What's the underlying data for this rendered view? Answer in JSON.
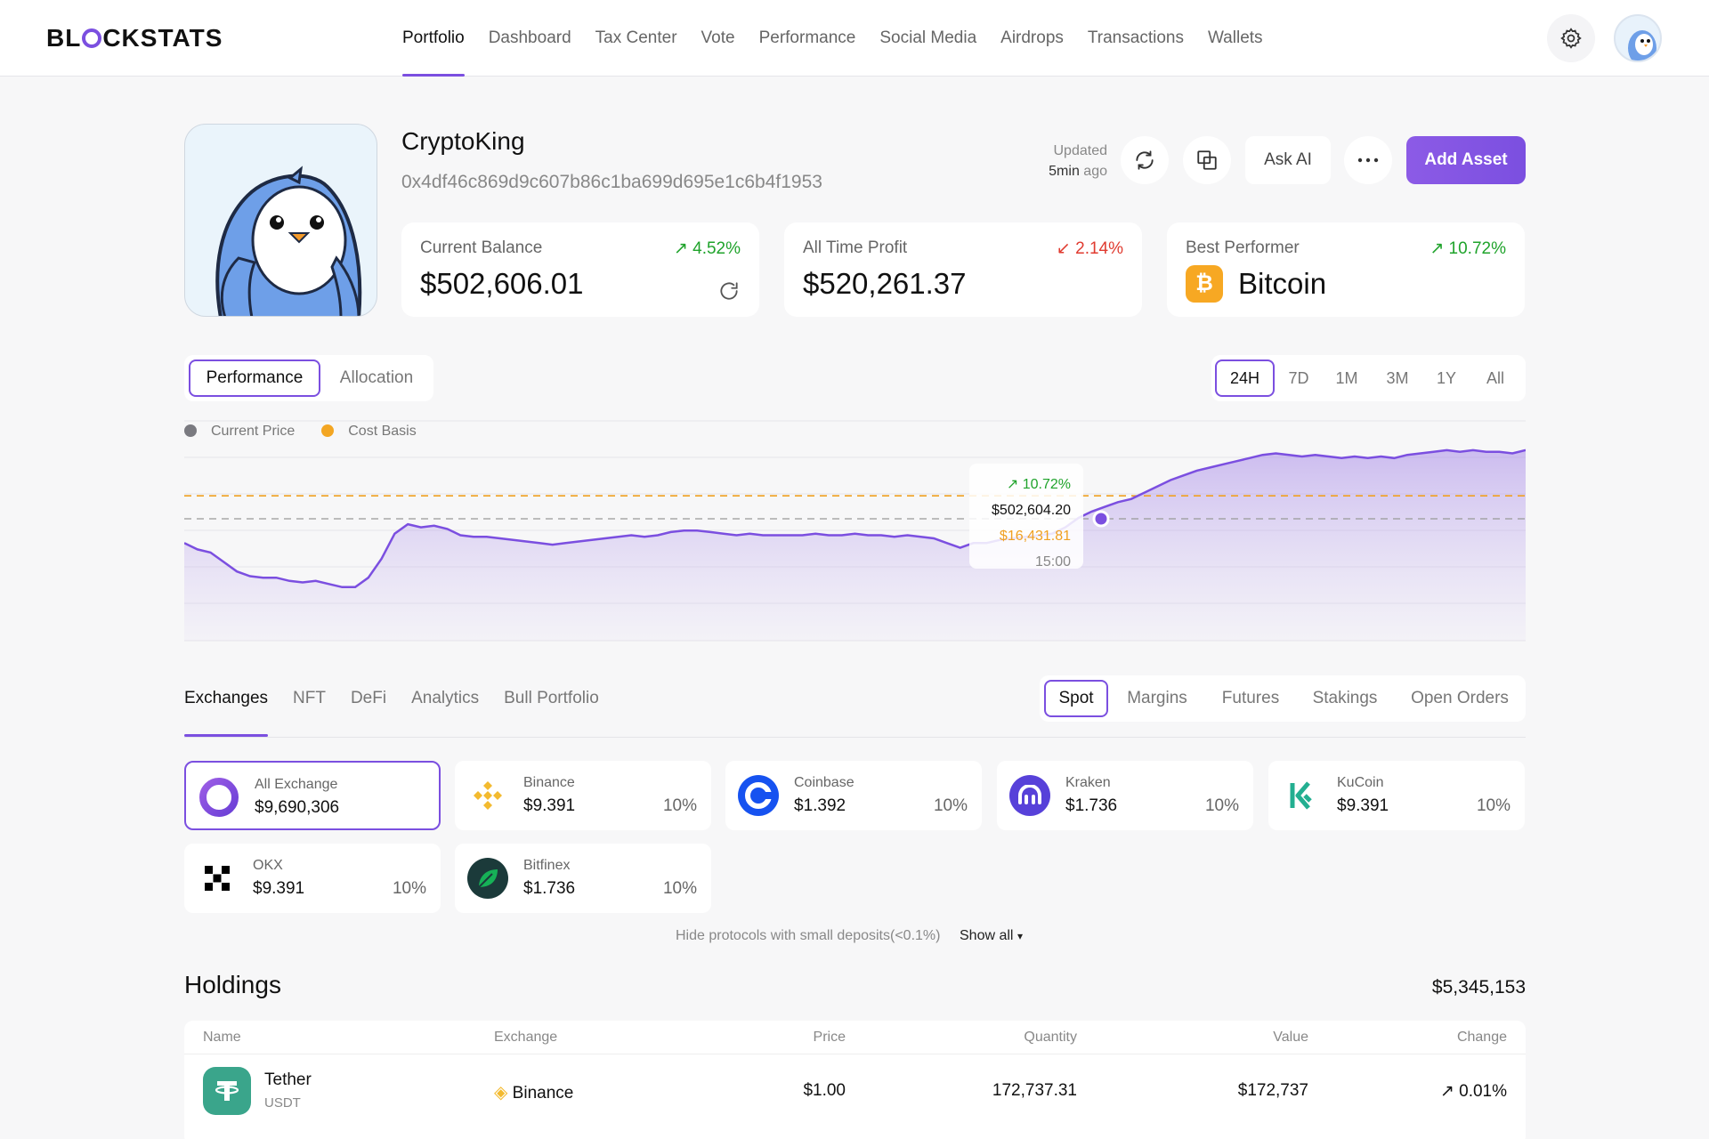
{
  "app": {
    "logo_before": "BL",
    "logo_after": "CKSTATS"
  },
  "nav": [
    {
      "label": "Portfolio",
      "active": true
    },
    {
      "label": "Dashboard"
    },
    {
      "label": "Tax Center"
    },
    {
      "label": "Vote"
    },
    {
      "label": "Performance"
    },
    {
      "label": "Social Media"
    },
    {
      "label": "Airdrops"
    },
    {
      "label": "Transactions"
    },
    {
      "label": "Wallets"
    }
  ],
  "profile": {
    "name": "CryptoKing",
    "address": "0x4df46c869d9c607b86c1ba699d695e1c6b4f1953",
    "updated_label": "Updated",
    "updated_value": "5min",
    "updated_suffix": "ago"
  },
  "actions": {
    "ask_ai": "Ask AI",
    "add_asset": "Add Asset"
  },
  "stats": [
    {
      "label": "Current Balance",
      "change": "4.52%",
      "direction": "up",
      "value": "$502,606.01"
    },
    {
      "label": "All Time Profit",
      "change": "2.14%",
      "direction": "down",
      "value": "$520,261.37"
    },
    {
      "label": "Best Performer",
      "change": "10.72%",
      "direction": "up",
      "value": "Bitcoin"
    }
  ],
  "chart_tabs": [
    {
      "label": "Performance",
      "active": true
    },
    {
      "label": "Allocation"
    }
  ],
  "range_tabs": [
    {
      "label": "24H",
      "active": true
    },
    {
      "label": "7D"
    },
    {
      "label": "1M"
    },
    {
      "label": "3M"
    },
    {
      "label": "1Y"
    },
    {
      "label": "All"
    }
  ],
  "legend": [
    {
      "label": "Current Price",
      "color": "#7a7a80"
    },
    {
      "label": "Cost Basis",
      "color": "#f3a623"
    }
  ],
  "tooltip": {
    "change": "10.72%",
    "price": "$502,604.20",
    "cost": "$16,431.81",
    "time": "15:00"
  },
  "chart_data": {
    "type": "area",
    "series": [
      {
        "name": "Current Price",
        "values": [
          62,
          58,
          56,
          50,
          44,
          41,
          40,
          40,
          38,
          37,
          38,
          36,
          34,
          34,
          40,
          52,
          68,
          74,
          72,
          73,
          71,
          67,
          66,
          66,
          65,
          64,
          63,
          62,
          61,
          62,
          63,
          64,
          65,
          66,
          67,
          66,
          67,
          69,
          70,
          70,
          69,
          68,
          67,
          68,
          67,
          67,
          67,
          67,
          68,
          67,
          67,
          68,
          67,
          67,
          66,
          67,
          66,
          65,
          62,
          59,
          62,
          62,
          64,
          65,
          66,
          67,
          68,
          72,
          78,
          82,
          85,
          88,
          90,
          94,
          98,
          102,
          105,
          108,
          110,
          112,
          114,
          116,
          118,
          119,
          118,
          117,
          118,
          117,
          116,
          117,
          116,
          117,
          116,
          118,
          119,
          120,
          121,
          120,
          121,
          120,
          120,
          119,
          121
        ]
      },
      {
        "name": "Cost Basis",
        "values": [
          92,
          92
        ]
      }
    ]
  },
  "section_tabs": [
    {
      "label": "Exchanges",
      "active": true
    },
    {
      "label": "NFT"
    },
    {
      "label": "DeFi"
    },
    {
      "label": "Analytics"
    },
    {
      "label": "Bull Portfolio"
    }
  ],
  "spot_tabs": [
    {
      "label": "Spot",
      "active": true
    },
    {
      "label": "Margins"
    },
    {
      "label": "Futures"
    },
    {
      "label": "Stakings"
    },
    {
      "label": "Open Orders"
    }
  ],
  "exchanges": [
    {
      "name": "All Exchange",
      "value": "$9,690,306",
      "pct": "",
      "icon": "all-exchange-icon",
      "color": "#7b4fe0",
      "active": true
    },
    {
      "name": "Binance",
      "value": "$9.391",
      "pct": "10%",
      "icon": "binance-icon",
      "color": "#f3ba2f"
    },
    {
      "name": "Coinbase",
      "value": "$1.392",
      "pct": "10%",
      "icon": "coinbase-icon",
      "color": "#1652f0"
    },
    {
      "name": "Kraken",
      "value": "$1.736",
      "pct": "10%",
      "icon": "kraken-icon",
      "color": "#5741d9"
    },
    {
      "name": "KuCoin",
      "value": "$9.391",
      "pct": "10%",
      "icon": "kucoin-icon",
      "color": "#23af91"
    },
    {
      "name": "OKX",
      "value": "$9.391",
      "pct": "10%",
      "icon": "okx-icon",
      "color": "#000000"
    },
    {
      "name": "Bitfinex",
      "value": "$1.736",
      "pct": "10%",
      "icon": "bitfinex-icon",
      "color": "#1b3a3a"
    }
  ],
  "small_deposits": {
    "label": "Hide protocols with small deposits(<0.1%)",
    "show_all": "Show all"
  },
  "holdings": {
    "title": "Holdings",
    "total": "$5,345,153",
    "columns": [
      "Name",
      "Exchange",
      "Price",
      "Quantity",
      "Value",
      "Change"
    ],
    "rows": [
      {
        "name": "Tether",
        "symbol": "USDT",
        "exchange": "Binance",
        "price": "$1.00",
        "quantity": "172,737.31",
        "value": "$172,737",
        "change": "0.01%"
      }
    ]
  }
}
